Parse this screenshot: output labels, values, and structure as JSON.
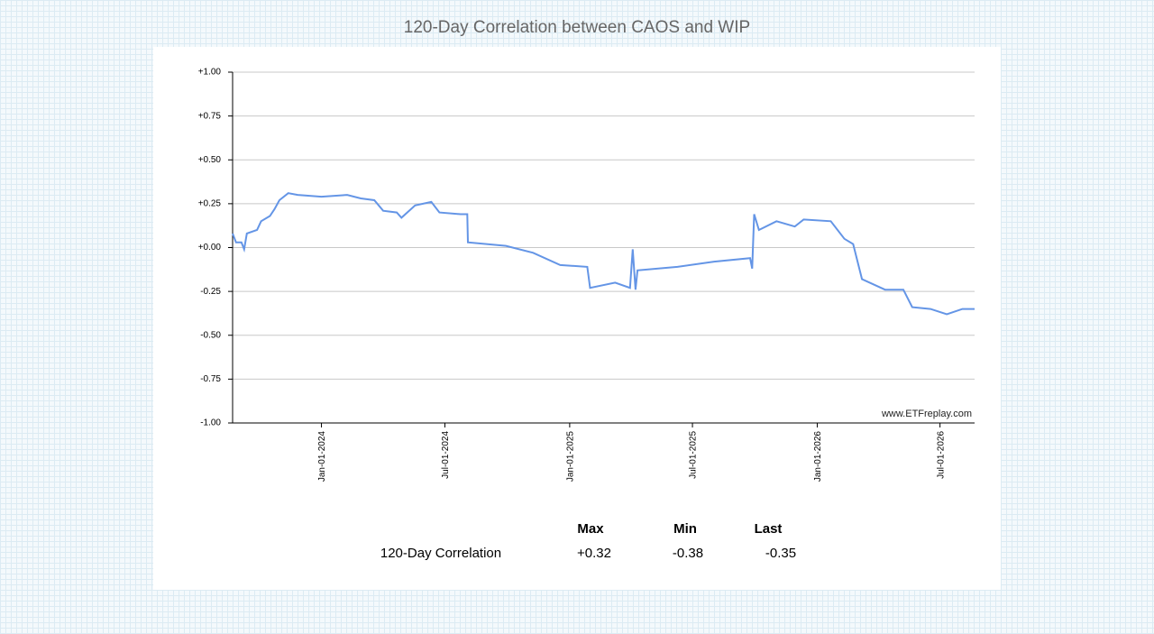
{
  "chart_data": {
    "type": "line",
    "title": "120-Day Correlation between CAOS and WIP",
    "watermark": "www.ETFreplay.com",
    "xlim": [
      "2023-08-23",
      "2026-08-21"
    ],
    "xticks": [
      {
        "value": "2024-01-01",
        "label": "Jan-01-2024"
      },
      {
        "value": "2024-07-01",
        "label": "Jul-01-2024"
      },
      {
        "value": "2025-01-01",
        "label": "Jan-01-2025"
      },
      {
        "value": "2025-07-01",
        "label": "Jul-01-2025"
      },
      {
        "value": "2026-01-01",
        "label": "Jan-01-2026"
      },
      {
        "value": "2026-07-01",
        "label": "Jul-01-2026"
      }
    ],
    "ylim": [
      -1,
      1
    ],
    "yticks": [
      {
        "value": -1,
        "label": "-1.00"
      },
      {
        "value": -0.75,
        "label": "-0.75"
      },
      {
        "value": -0.5,
        "label": "-0.50"
      },
      {
        "value": -0.25,
        "label": "-0.25"
      },
      {
        "value": 0,
        "label": "+0.00"
      },
      {
        "value": 0.25,
        "label": "+0.25"
      },
      {
        "value": 0.5,
        "label": "+0.50"
      },
      {
        "value": 0.75,
        "label": "+0.75"
      },
      {
        "value": 1,
        "label": "+1.00"
      }
    ],
    "grid": true,
    "series": [
      {
        "name": "120-Day Correlation",
        "color": "#6495e6",
        "x": [
          "2023-08-23",
          "2023-08-28",
          "2023-09-05",
          "2023-09-09",
          "2023-09-13",
          "2023-09-28",
          "2023-10-04",
          "2023-10-17",
          "2023-10-24",
          "2023-10-31",
          "2023-11-13",
          "2023-11-27",
          "2024-01-01",
          "2024-02-08",
          "2024-02-28",
          "2024-03-19",
          "2024-04-01",
          "2024-04-21",
          "2024-04-28",
          "2024-05-18",
          "2024-06-11",
          "2024-06-23",
          "2024-07-24",
          "2024-08-03",
          "2024-08-04",
          "2024-09-29",
          "2024-11-08",
          "2024-12-18",
          "2025-01-27",
          "2025-01-31",
          "2025-03-09",
          "2025-03-31",
          "2025-04-04",
          "2025-04-08",
          "2025-04-11",
          "2025-06-09",
          "2025-08-02",
          "2025-09-24",
          "2025-09-27",
          "2025-09-30",
          "2025-10-07",
          "2025-11-02",
          "2025-11-29",
          "2025-12-12",
          "2026-01-21",
          "2026-02-10",
          "2026-02-23",
          "2026-03-08",
          "2026-04-11",
          "2026-05-08",
          "2026-05-21",
          "2026-06-17",
          "2026-07-11",
          "2026-08-03",
          "2026-08-21"
        ],
        "values": [
          0.08,
          0.03,
          0.03,
          -0.01,
          0.08,
          0.1,
          0.15,
          0.18,
          0.22,
          0.27,
          0.31,
          0.3,
          0.29,
          0.3,
          0.28,
          0.27,
          0.21,
          0.2,
          0.17,
          0.24,
          0.26,
          0.2,
          0.19,
          0.19,
          0.03,
          0.01,
          -0.03,
          -0.1,
          -0.11,
          -0.23,
          -0.2,
          -0.23,
          -0.01,
          -0.24,
          -0.13,
          -0.11,
          -0.08,
          -0.06,
          -0.12,
          0.19,
          0.1,
          0.15,
          0.12,
          0.16,
          0.15,
          0.05,
          0.02,
          -0.18,
          -0.24,
          -0.24,
          -0.34,
          -0.35,
          -0.38,
          -0.35,
          -0.35
        ]
      }
    ],
    "stats": {
      "headers": [
        "Max",
        "Min",
        "Last"
      ],
      "rows": [
        {
          "label": "120-Day Correlation",
          "cells": [
            "+0.32",
            "-0.38",
            "-0.35"
          ]
        }
      ]
    }
  }
}
